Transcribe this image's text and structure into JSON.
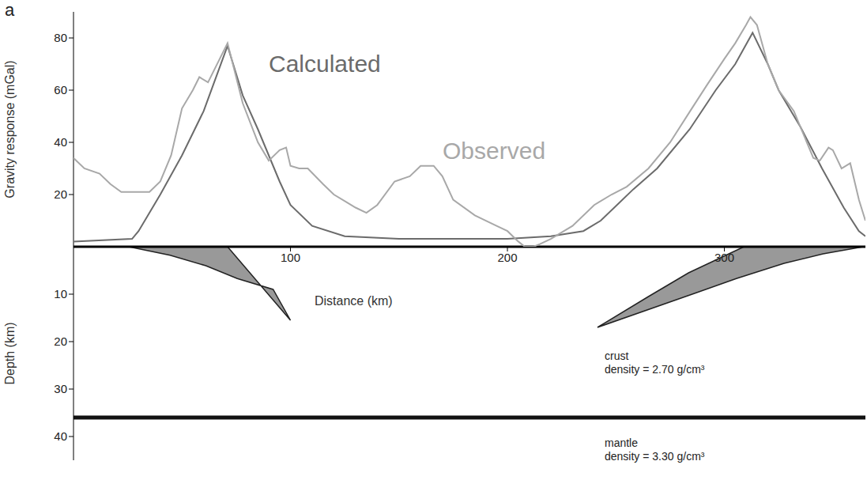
{
  "chart_data": [
    {
      "type": "line",
      "panel_label": "a",
      "x_label": "Distance (km)",
      "y_label": "Gravity response (mGal)",
      "xlim": [
        0,
        365
      ],
      "xticks": [
        100,
        200,
        300
      ],
      "ylim": [
        0,
        90
      ],
      "yticks": [
        20,
        40,
        60,
        80
      ],
      "series": [
        {
          "name": "Calculated",
          "color": "#6b6b6b",
          "x": [
            0,
            27,
            30,
            40,
            50,
            60,
            71,
            78,
            85,
            95,
            100,
            110,
            125,
            150,
            175,
            200,
            220,
            235,
            243,
            258,
            269,
            284,
            296,
            305,
            313,
            320,
            325,
            335,
            345,
            355,
            362,
            365
          ],
          "values": [
            2,
            3,
            6,
            20,
            35,
            52,
            77,
            58,
            45,
            25,
            16,
            8,
            4,
            3,
            3,
            3,
            4,
            6,
            10,
            22,
            30,
            45,
            60,
            70,
            82,
            70,
            60,
            46,
            30,
            15,
            6,
            4
          ]
        },
        {
          "name": "Observed",
          "color": "#a8a8a8",
          "x": [
            0,
            5,
            12,
            17,
            22,
            30,
            35,
            40,
            45,
            50,
            55,
            58,
            62,
            71,
            78,
            85,
            90,
            95,
            98,
            100,
            104,
            108,
            115,
            120,
            130,
            135,
            140,
            148,
            155,
            160,
            166,
            170,
            175,
            185,
            195,
            200,
            205,
            208,
            212,
            215,
            220,
            230,
            240,
            248,
            255,
            265,
            275,
            285,
            292,
            300,
            305,
            310,
            312,
            315,
            320,
            325,
            332,
            338,
            341,
            344,
            348,
            350,
            354,
            358,
            362,
            365
          ],
          "values": [
            34,
            30,
            28,
            24,
            21,
            21,
            21,
            25,
            35,
            53,
            60,
            65,
            63,
            78,
            55,
            40,
            33,
            37,
            38,
            31,
            30,
            30,
            24,
            20,
            15,
            13,
            16,
            25,
            27,
            31,
            31,
            27,
            18,
            12,
            8,
            6,
            2,
            0,
            0,
            1,
            3,
            8,
            16,
            20,
            23,
            30,
            40,
            53,
            62,
            72,
            78,
            85,
            88,
            85,
            70,
            60,
            52,
            40,
            34,
            33,
            38,
            37,
            30,
            32,
            18,
            10
          ]
        }
      ]
    },
    {
      "type": "cross_section",
      "y_label": "Depth (km)",
      "xlim": [
        0,
        365
      ],
      "ylim": [
        0,
        45
      ],
      "yticks": [
        10,
        20,
        30,
        40
      ],
      "bodies": [
        {
          "color": "#999999",
          "x": [
            25.5,
            71,
            100,
            92,
            75.5,
            61,
            44.5
          ],
          "depth": [
            0,
            0,
            15.5,
            9,
            6.7,
            4,
            1.8
          ]
        },
        {
          "color": "#999999",
          "x": [
            241.5,
            265,
            283.5,
            309,
            364,
            345.5,
            327.5,
            305.5,
            287
          ],
          "depth": [
            17,
            10.5,
            5.5,
            0,
            0,
            1.5,
            3.5,
            6.7,
            9.7
          ]
        }
      ],
      "moho_depth": 36,
      "layers": [
        {
          "name": "crust",
          "label": "density = 2.70 g/cm³"
        },
        {
          "name": "mantle",
          "label": "density = 3.30 g/cm³"
        }
      ]
    }
  ]
}
